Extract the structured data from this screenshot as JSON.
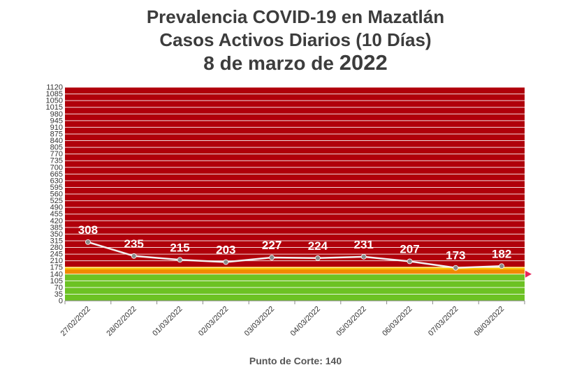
{
  "title": {
    "line1": "Prevalencia COVID-19 en Mazatlán",
    "line2": "Casos Activos Diarios (10 Días)",
    "line3_prefix": "8 de marzo de ",
    "line3_year": "2022"
  },
  "footer": "Punto de Corte: 140",
  "colors": {
    "red_zone": "#b0000a",
    "orange_band": "#f08a00",
    "yellow_band": "#f7c400",
    "green_zone": "#6cc223",
    "line": "#f2f2f2",
    "marker": "#8a8a8a",
    "arrow": "#e8245a"
  },
  "chart_data": {
    "type": "line",
    "title": "Prevalencia COVID-19 en Mazatlán — Casos Activos Diarios (10 Días) — 8 de marzo de 2022",
    "categories": [
      "27/02/2022",
      "28/02/2022",
      "01/03/2022",
      "02/03/2022",
      "03/03/2022",
      "04/03/2022",
      "05/03/2022",
      "06/03/2022",
      "07/03/2022",
      "08/03/2022"
    ],
    "series": [
      {
        "values": [
          308,
          235,
          215,
          203,
          227,
          224,
          231,
          207,
          173,
          182
        ]
      }
    ],
    "ylim": [
      0,
      1120
    ],
    "ytick_step": 35,
    "cutoff": 140,
    "zones": [
      {
        "from": 0,
        "to": 140,
        "color": "green"
      },
      {
        "from": 140,
        "to": 175,
        "color": "orange"
      },
      {
        "from": 175,
        "to": 1120,
        "color": "red"
      }
    ],
    "grid": true
  }
}
